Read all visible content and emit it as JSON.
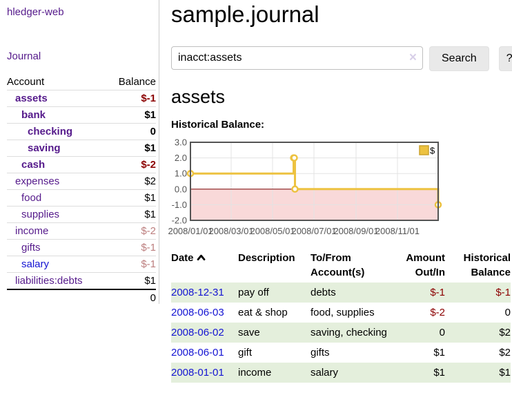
{
  "app": {
    "brand": "hledger-web"
  },
  "sidebar": {
    "nav": {
      "journal": "Journal"
    },
    "headers": {
      "account": "Account",
      "balance": "Balance"
    },
    "rows": [
      {
        "account": "assets",
        "balance": "$-1",
        "level": 0,
        "bold": true,
        "amount_style": "neg",
        "link_style": "purple"
      },
      {
        "account": "bank",
        "balance": "$1",
        "level": 1,
        "bold": true,
        "amount_style": "normal",
        "link_style": "purple"
      },
      {
        "account": "checking",
        "balance": "0",
        "level": 2,
        "bold": true,
        "amount_style": "normal",
        "link_style": "purple"
      },
      {
        "account": "saving",
        "balance": "$1",
        "level": 2,
        "bold": true,
        "amount_style": "normal",
        "link_style": "purple"
      },
      {
        "account": "cash",
        "balance": "$-2",
        "level": 1,
        "bold": true,
        "amount_style": "neg",
        "link_style": "purple"
      },
      {
        "account": "expenses",
        "balance": "$2",
        "level": 0,
        "bold": false,
        "amount_style": "normal",
        "link_style": "purple"
      },
      {
        "account": "food",
        "balance": "$1",
        "level": 1,
        "bold": false,
        "amount_style": "normal",
        "link_style": "purple"
      },
      {
        "account": "supplies",
        "balance": "$1",
        "level": 1,
        "bold": false,
        "amount_style": "normal",
        "link_style": "purple"
      },
      {
        "account": "income",
        "balance": "$-2",
        "level": 0,
        "bold": false,
        "amount_style": "faded",
        "link_style": "purple"
      },
      {
        "account": "gifts",
        "balance": "$-1",
        "level": 1,
        "bold": false,
        "amount_style": "faded",
        "link_style": "purple"
      },
      {
        "account": "salary",
        "balance": "$-1",
        "level": 1,
        "bold": false,
        "amount_style": "faded",
        "link_style": "blue"
      },
      {
        "account": "liabilities:debts",
        "balance": "$1",
        "level": 0,
        "bold": false,
        "amount_style": "normal",
        "link_style": "purple"
      }
    ],
    "total": "0"
  },
  "main": {
    "title": "sample.journal",
    "search": {
      "value": "inacct:assets",
      "clear": "×",
      "button": "Search",
      "help": "?"
    },
    "heading": "assets",
    "chart_label": "Historical Balance:"
  },
  "chart_data": {
    "type": "line",
    "step": true,
    "title": "Historical Balance",
    "x": [
      "2008-01-01",
      "2008-06-01",
      "2008-06-02",
      "2008-06-03",
      "2008-12-31"
    ],
    "y": [
      1,
      2,
      2,
      0,
      -1
    ],
    "xlim": [
      "2008-01-01",
      "2008-12-31"
    ],
    "ylim": [
      -2,
      3
    ],
    "x_tick_labels": [
      "2008/01/01",
      "2008/03/01",
      "2008/05/01",
      "2008/07/01",
      "2008/09/01",
      "2008/11/01"
    ],
    "y_tick_labels": [
      "3.0",
      "2.0",
      "1.0",
      "0.0",
      "-1.0",
      "-2.0"
    ],
    "y_tick_values": [
      3,
      2,
      1,
      0,
      -1,
      -2
    ],
    "grid": true,
    "legend_position": "top-right",
    "legend": [
      {
        "label": "$",
        "color": "#EDC240"
      }
    ],
    "colors": {
      "series": "#EDC240",
      "marker_fill": "#FFFFFF",
      "negative_region": "#F9D9D9",
      "zero_line": "#8B1A1A",
      "grid": "#E3E3E3",
      "border": "#545454",
      "tick_text": "#545454"
    }
  },
  "register": {
    "headers": {
      "date": "Date",
      "description": "Description",
      "tofrom1": "To/From",
      "tofrom2": "Account(s)",
      "amount1": "Amount",
      "amount2": "Out/In",
      "balance1": "Historical",
      "balance2": "Balance"
    },
    "rows": [
      {
        "date": "2008-12-31",
        "description": "pay off",
        "accounts": "debts",
        "amount": "$-1",
        "amount_negative": true,
        "balance": "$-1",
        "balance_negative": true
      },
      {
        "date": "2008-06-03",
        "description": "eat & shop",
        "accounts": "food, supplies",
        "amount": "$-2",
        "amount_negative": true,
        "balance": "0",
        "balance_negative": false
      },
      {
        "date": "2008-06-02",
        "description": "save",
        "accounts": "saving, checking",
        "amount": "0",
        "amount_negative": false,
        "balance": "$2",
        "balance_negative": false
      },
      {
        "date": "2008-06-01",
        "description": "gift",
        "accounts": "gifts",
        "amount": "$1",
        "amount_negative": false,
        "balance": "$2",
        "balance_negative": false
      },
      {
        "date": "2008-01-01",
        "description": "income",
        "accounts": "salary",
        "amount": "$1",
        "amount_negative": false,
        "balance": "$1",
        "balance_negative": false
      }
    ]
  },
  "colors": {
    "link_purple": "#551A8B",
    "link_blue": "#1414D2",
    "negative": "#8B0000",
    "faded_negative": "#BC7E7E",
    "row_stripe_green": "#E4EFDC",
    "accent_gold": "#EDC240"
  }
}
